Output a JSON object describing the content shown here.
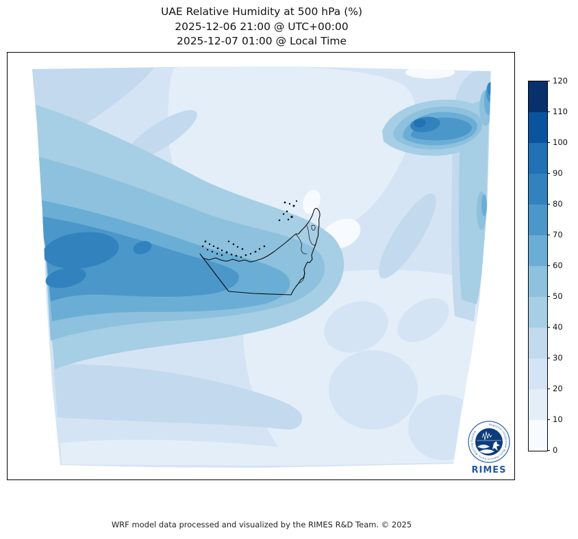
{
  "figure": {
    "title_line1": "UAE Relative Humidity at 500 hPa (%)",
    "title_line2": "2025-12-06 21:00 @ UTC+00:00",
    "title_line3": "2025-12-07 01:00 @ Local Time",
    "footer": "WRF model data processed and visualized by the RIMES R&D Team. © 2025"
  },
  "colorbar": {
    "ticks": [
      0,
      10,
      20,
      30,
      40,
      50,
      60,
      70,
      80,
      90,
      100,
      110,
      120
    ],
    "min": 0,
    "max": 120,
    "levels": [
      {
        "from": 0,
        "to": 10,
        "color": "#f7fbff"
      },
      {
        "from": 10,
        "to": 20,
        "color": "#e3eef9"
      },
      {
        "from": 20,
        "to": 30,
        "color": "#d4e4f4"
      },
      {
        "from": 30,
        "to": 40,
        "color": "#c2d9ee"
      },
      {
        "from": 40,
        "to": 50,
        "color": "#a6cee4"
      },
      {
        "from": 50,
        "to": 60,
        "color": "#8dc1dd"
      },
      {
        "from": 60,
        "to": 70,
        "color": "#6aaed6"
      },
      {
        "from": 70,
        "to": 80,
        "color": "#4b97c9"
      },
      {
        "from": 80,
        "to": 90,
        "color": "#3282be"
      },
      {
        "from": 90,
        "to": 100,
        "color": "#2171b5"
      },
      {
        "from": 100,
        "to": 110,
        "color": "#0a549e"
      },
      {
        "from": 110,
        "to": 120,
        "color": "#08306b"
      }
    ]
  },
  "map": {
    "boundary_overlay": "United Arab Emirates national and emirate boundaries with coastal islands",
    "boundary_color": "#000000"
  },
  "logo": {
    "label": "RIMES",
    "ring_text": "Regional Integrated Multi-Hazard Early Warning System"
  },
  "chart_data": {
    "type": "heatmap",
    "title": "UAE Relative Humidity at 500 hPa (%)",
    "subtitle_utc": "2025-12-06 21:00 @ UTC+00:00",
    "subtitle_local": "2025-12-07 01:00 @ Local Time",
    "variable": "relative humidity",
    "pressure_level_hPa": 500,
    "units": "%",
    "value_range": [
      0,
      120
    ],
    "contour_interval": 10,
    "colormap": "Blues (discrete, 12 bins)",
    "legend_position": "right",
    "features": [
      {
        "label": "broad moist band west and southwest of the UAE over the southern Arabian Gulf",
        "approx_rh_percent": [
          50,
          80
        ]
      },
      {
        "label": "humidity maximum cores in the far west of the domain",
        "approx_rh_percent": [
          80,
          90
        ]
      },
      {
        "label": "compact moist cell in the northeast corner of the domain",
        "approx_rh_percent": [
          80,
          100
        ]
      },
      {
        "label": "moist strip hugging the eastern domain edge",
        "approx_rh_percent": [
          40,
          70
        ]
      },
      {
        "label": "very dry air over the central domain and eastern UAE",
        "approx_rh_percent": [
          0,
          20
        ]
      },
      {
        "label": "dry region over the southeastern quadrant with slightly moister patches",
        "approx_rh_percent": [
          10,
          30
        ]
      },
      {
        "label": "bands drying from ~50% to ~10% toward the southern domain edge",
        "approx_rh_percent": [
          10,
          50
        ]
      }
    ]
  }
}
